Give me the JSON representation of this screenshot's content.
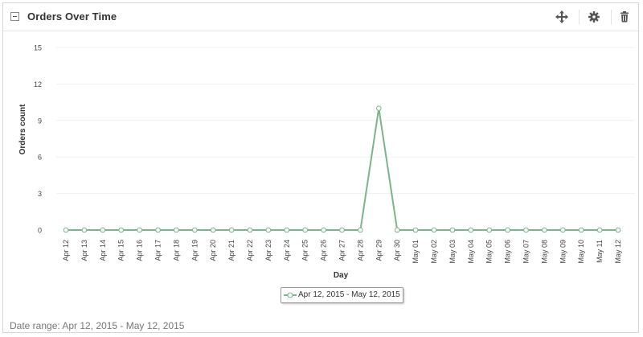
{
  "widget": {
    "title": "Orders Over Time",
    "icons": [
      "move-icon",
      "gear-icon",
      "trash-icon"
    ],
    "date_range_label": "Date range: Apr 12, 2015 - May 12, 2015"
  },
  "chart_data": {
    "type": "line",
    "xlabel": "Day",
    "ylabel": "Orders count",
    "ylim": [
      0,
      15
    ],
    "yticks": [
      0,
      3,
      6,
      9,
      12,
      15
    ],
    "grid": true,
    "legend_position": "bottom-center",
    "categories": [
      "Apr 12",
      "Apr 13",
      "Apr 14",
      "Apr 15",
      "Apr 16",
      "Apr 17",
      "Apr 18",
      "Apr 19",
      "Apr 20",
      "Apr 21",
      "Apr 22",
      "Apr 23",
      "Apr 24",
      "Apr 25",
      "Apr 26",
      "Apr 27",
      "Apr 28",
      "Apr 29",
      "Apr 30",
      "May 01",
      "May 02",
      "May 03",
      "May 04",
      "May 05",
      "May 06",
      "May 07",
      "May 08",
      "May 09",
      "May 10",
      "May 11",
      "May 12"
    ],
    "series": [
      {
        "name": "Apr 12, 2015 - May 12, 2015",
        "color": "#7cb58a",
        "values": [
          0,
          0,
          0,
          0,
          0,
          0,
          0,
          0,
          0,
          0,
          0,
          0,
          0,
          0,
          0,
          0,
          0,
          10,
          0,
          0,
          0,
          0,
          0,
          0,
          0,
          0,
          0,
          0,
          0,
          0,
          0
        ]
      }
    ]
  }
}
